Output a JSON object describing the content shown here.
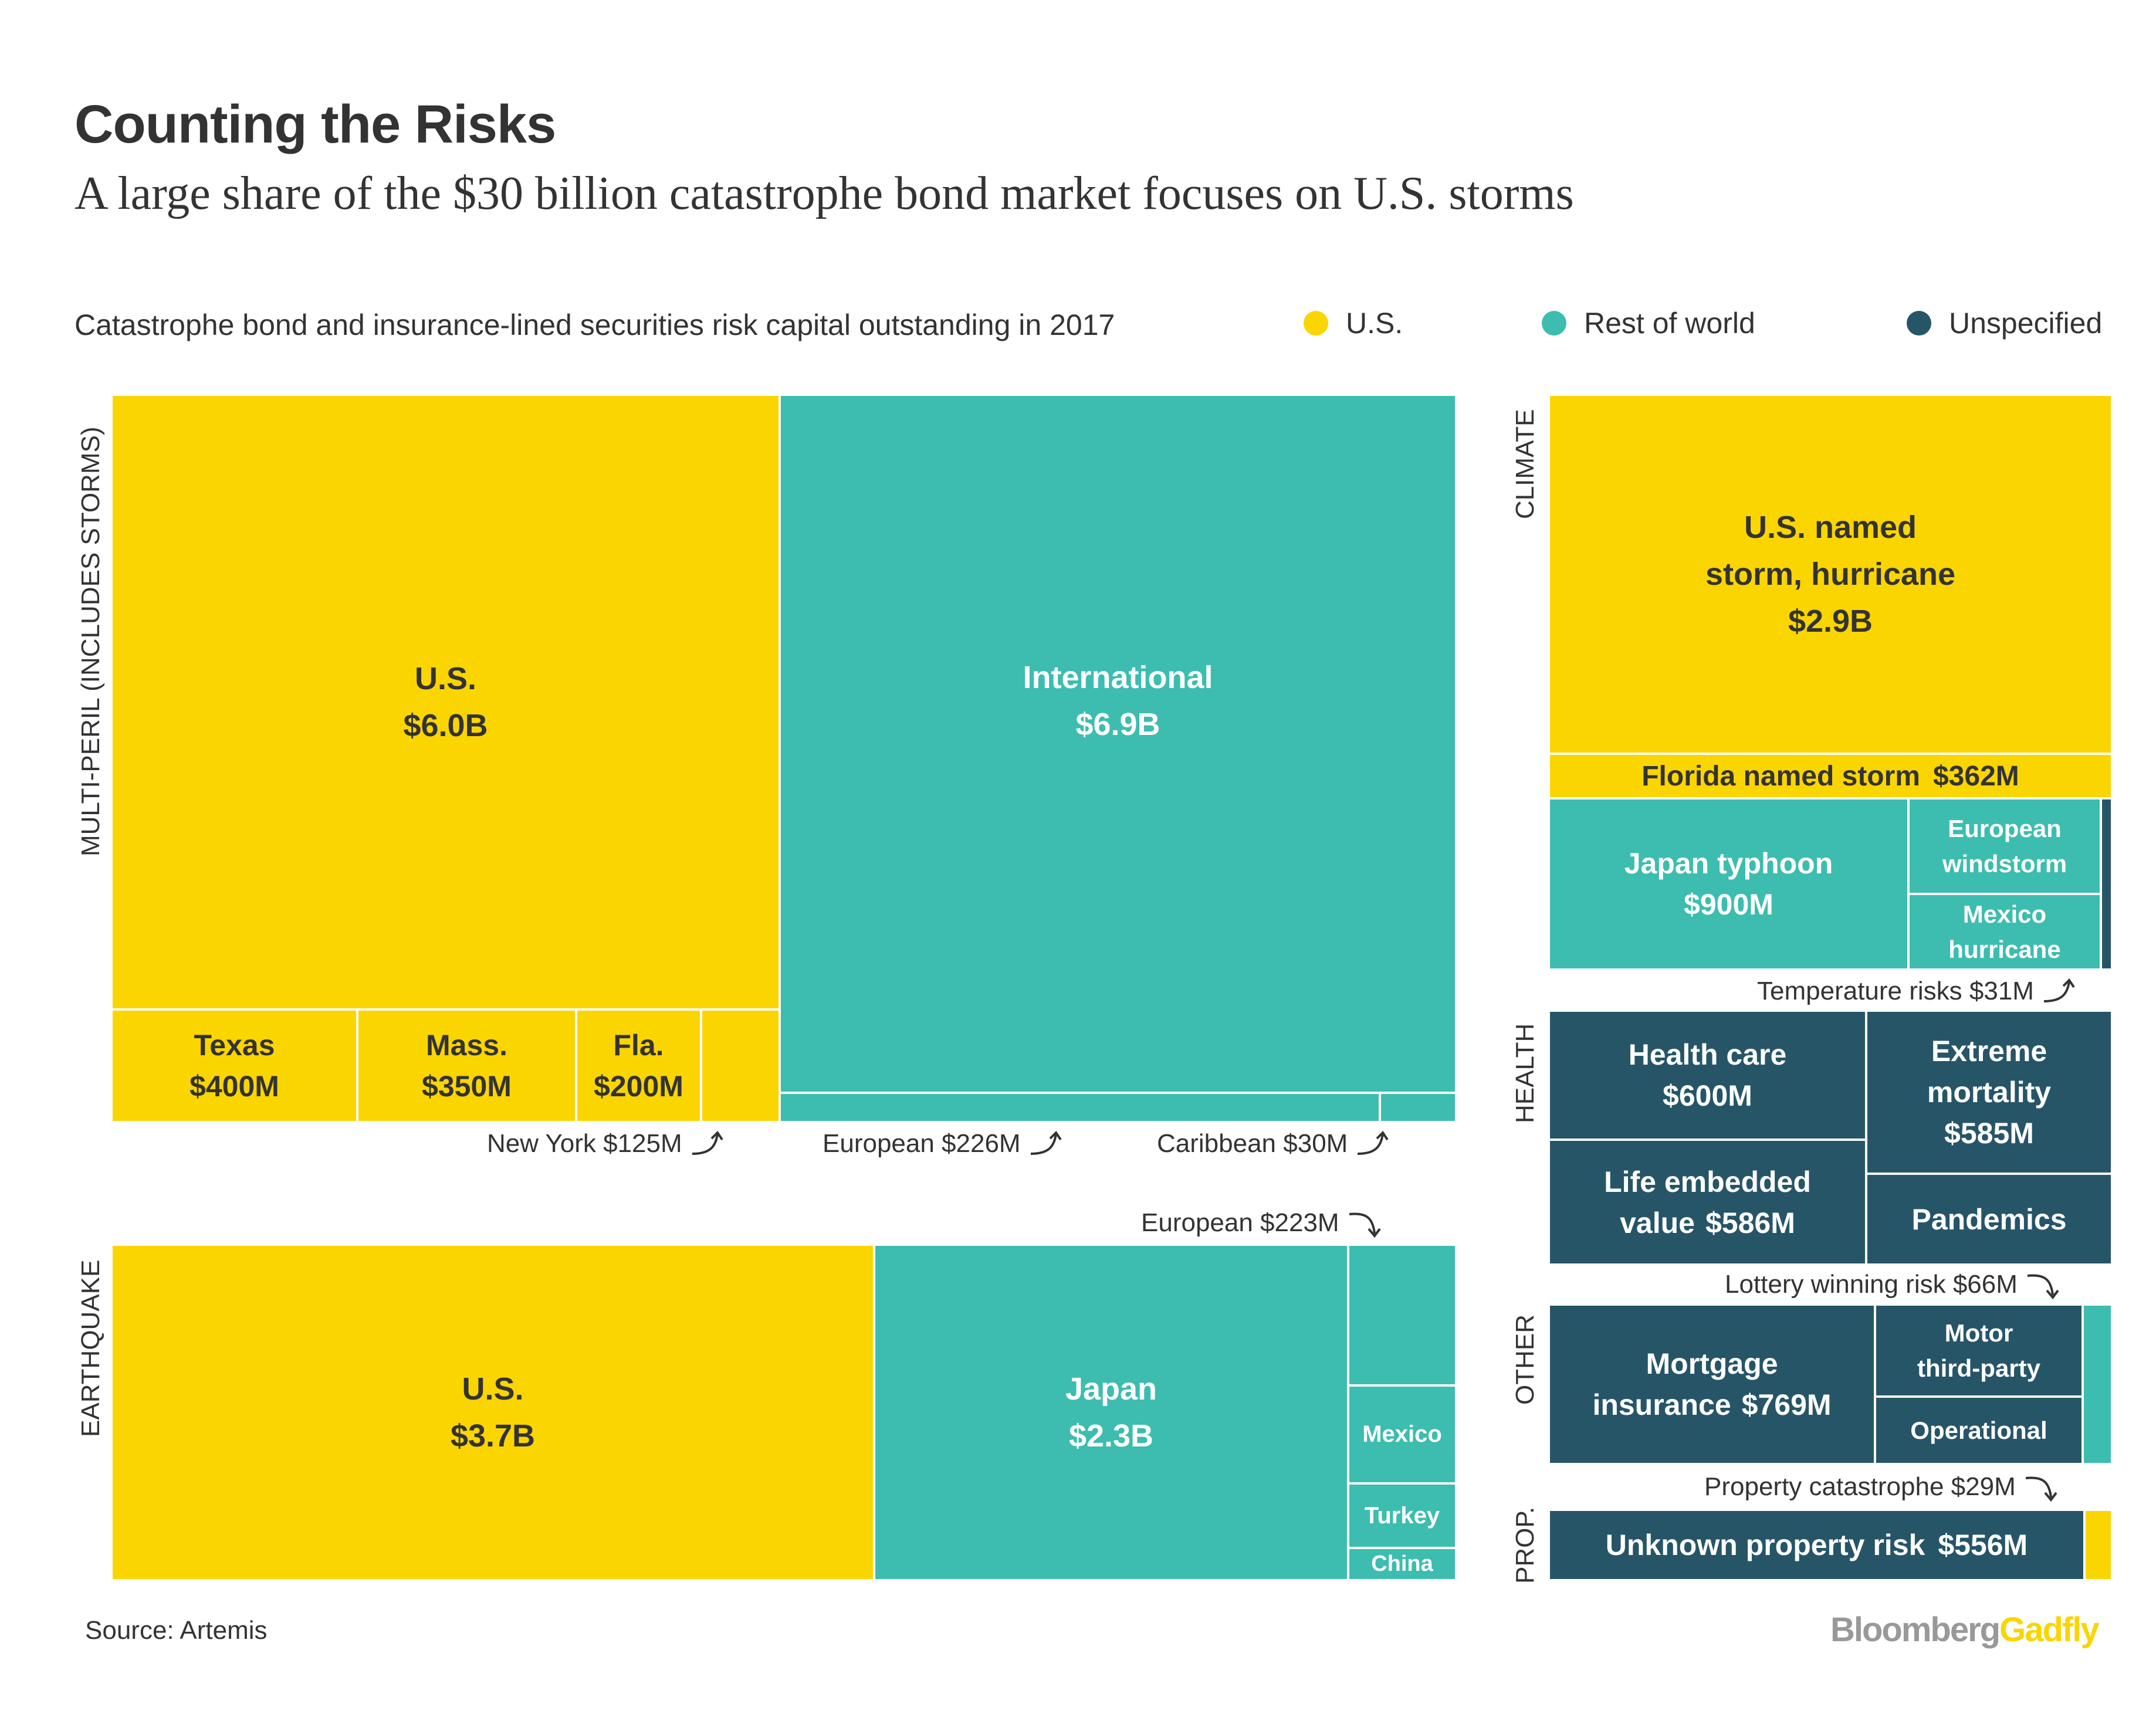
{
  "title": "Counting the Risks",
  "subtitle": "A large share of the $30 billion catastrophe bond market focuses on U.S. storms",
  "description": "Catastrophe bond and insurance-lined securities risk capital outstanding in 2017",
  "legend": [
    {
      "label": "U.S.",
      "color": "#fbd500"
    },
    {
      "label": "Rest of world",
      "color": "#3cbdaf"
    },
    {
      "label": "Unspecified",
      "color": "#265568"
    }
  ],
  "sections": {
    "multi_peril": "MULTI-PERIL (INCLUDES STORMS)",
    "earthquake": "EARTHQUAKE",
    "climate": "CLIMATE",
    "health": "HEALTH",
    "other": "OTHER",
    "prop": "PROP."
  },
  "cells": {
    "mp_us": {
      "name": "U.S.",
      "value": "$6.0B"
    },
    "mp_intl": {
      "name": "International",
      "value": "$6.9B"
    },
    "mp_texas": {
      "name": "Texas",
      "value": "$400M"
    },
    "mp_mass": {
      "name": "Mass.",
      "value": "$350M"
    },
    "mp_fla": {
      "name": "Fla.",
      "value": "$200M"
    },
    "eq_us": {
      "name": "U.S.",
      "value": "$3.7B"
    },
    "eq_japan": {
      "name": "Japan",
      "value": "$2.3B"
    },
    "eq_mexico": {
      "name": "Mexico"
    },
    "eq_turkey": {
      "name": "Turkey"
    },
    "eq_china": {
      "name": "China"
    },
    "cl_us": {
      "line1": "U.S. named",
      "line2": "storm, hurricane",
      "value": "$2.9B"
    },
    "cl_florida": {
      "name": "Florida named storm",
      "value": "$362M"
    },
    "cl_japan": {
      "name": "Japan typhoon",
      "value": "$900M"
    },
    "cl_euro": {
      "line1": "European",
      "line2": "windstorm"
    },
    "cl_mexico": {
      "line1": "Mexico",
      "line2": "hurricane"
    },
    "he_care": {
      "name": "Health care",
      "value": "$600M"
    },
    "he_mort": {
      "line1": "Extreme",
      "line2": "mortality",
      "value": "$585M"
    },
    "he_life": {
      "line1": "Life embedded",
      "line2": "value",
      "value": "$586M"
    },
    "he_pand": {
      "name": "Pandemics"
    },
    "ot_mort": {
      "line1": "Mortgage",
      "line2": "insurance",
      "value": "$769M"
    },
    "ot_motor": {
      "line1": "Motor",
      "line2": "third-party"
    },
    "ot_oper": {
      "name": "Operational"
    },
    "pr_unknown": {
      "name": "Unknown property risk",
      "value": "$556M"
    }
  },
  "annotations": {
    "new_york": "New York $125M",
    "european_mp": "European $226M",
    "caribbean": "Caribbean $30M",
    "european_eq": "European $223M",
    "temperature": "Temperature risks $31M",
    "lottery": "Lottery winning risk $66M",
    "property_cat": "Property catastrophe $29M"
  },
  "source": "Source: Artemis",
  "brand": {
    "part1": "Bloomberg",
    "part2": "Gadfly"
  },
  "chart_data": {
    "type": "treemap",
    "title": "Counting the Risks",
    "subtitle": "A large share of the $30 billion catastrophe bond market focuses on U.S. storms",
    "units": "USD",
    "groups": [
      {
        "name": "MULTI-PERIL (INCLUDES STORMS)",
        "items": [
          {
            "label": "U.S.",
            "value": 6000,
            "region": "U.S."
          },
          {
            "label": "Texas",
            "value": 400,
            "region": "U.S."
          },
          {
            "label": "Mass.",
            "value": 350,
            "region": "U.S."
          },
          {
            "label": "Fla.",
            "value": 200,
            "region": "U.S."
          },
          {
            "label": "New York",
            "value": 125,
            "region": "U.S."
          },
          {
            "label": "International",
            "value": 6900,
            "region": "Rest of world"
          },
          {
            "label": "European",
            "value": 226,
            "region": "Rest of world"
          },
          {
            "label": "Caribbean",
            "value": 30,
            "region": "Rest of world"
          }
        ]
      },
      {
        "name": "EARTHQUAKE",
        "items": [
          {
            "label": "U.S.",
            "value": 3700,
            "region": "U.S."
          },
          {
            "label": "Japan",
            "value": 2300,
            "region": "Rest of world"
          },
          {
            "label": "European",
            "value": 223,
            "region": "Rest of world"
          },
          {
            "label": "Mexico",
            "value": null,
            "region": "Rest of world"
          },
          {
            "label": "Turkey",
            "value": null,
            "region": "Rest of world"
          },
          {
            "label": "China",
            "value": null,
            "region": "Rest of world"
          }
        ]
      },
      {
        "name": "CLIMATE",
        "items": [
          {
            "label": "U.S. named storm, hurricane",
            "value": 2900,
            "region": "U.S."
          },
          {
            "label": "Florida named storm",
            "value": 362,
            "region": "U.S."
          },
          {
            "label": "Japan typhoon",
            "value": 900,
            "region": "Rest of world"
          },
          {
            "label": "European windstorm",
            "value": null,
            "region": "Rest of world"
          },
          {
            "label": "Mexico hurricane",
            "value": null,
            "region": "Rest of world"
          },
          {
            "label": "Temperature risks",
            "value": 31,
            "region": "Unspecified"
          }
        ]
      },
      {
        "name": "HEALTH",
        "items": [
          {
            "label": "Health care",
            "value": 600,
            "region": "Unspecified"
          },
          {
            "label": "Extreme mortality",
            "value": 585,
            "region": "Unspecified"
          },
          {
            "label": "Life embedded value",
            "value": 586,
            "region": "Unspecified"
          },
          {
            "label": "Pandemics",
            "value": null,
            "region": "Unspecified"
          }
        ]
      },
      {
        "name": "OTHER",
        "items": [
          {
            "label": "Mortgage insurance",
            "value": 769,
            "region": "Unspecified"
          },
          {
            "label": "Motor third-party",
            "value": null,
            "region": "Unspecified"
          },
          {
            "label": "Operational",
            "value": null,
            "region": "Unspecified"
          },
          {
            "label": "Lottery winning risk",
            "value": 66,
            "region": "Rest of world"
          }
        ]
      },
      {
        "name": "PROP.",
        "items": [
          {
            "label": "Unknown property risk",
            "value": 556,
            "region": "Unspecified"
          },
          {
            "label": "Property catastrophe",
            "value": 29,
            "region": "U.S."
          }
        ]
      }
    ],
    "value_unit_note": "values in $M"
  }
}
